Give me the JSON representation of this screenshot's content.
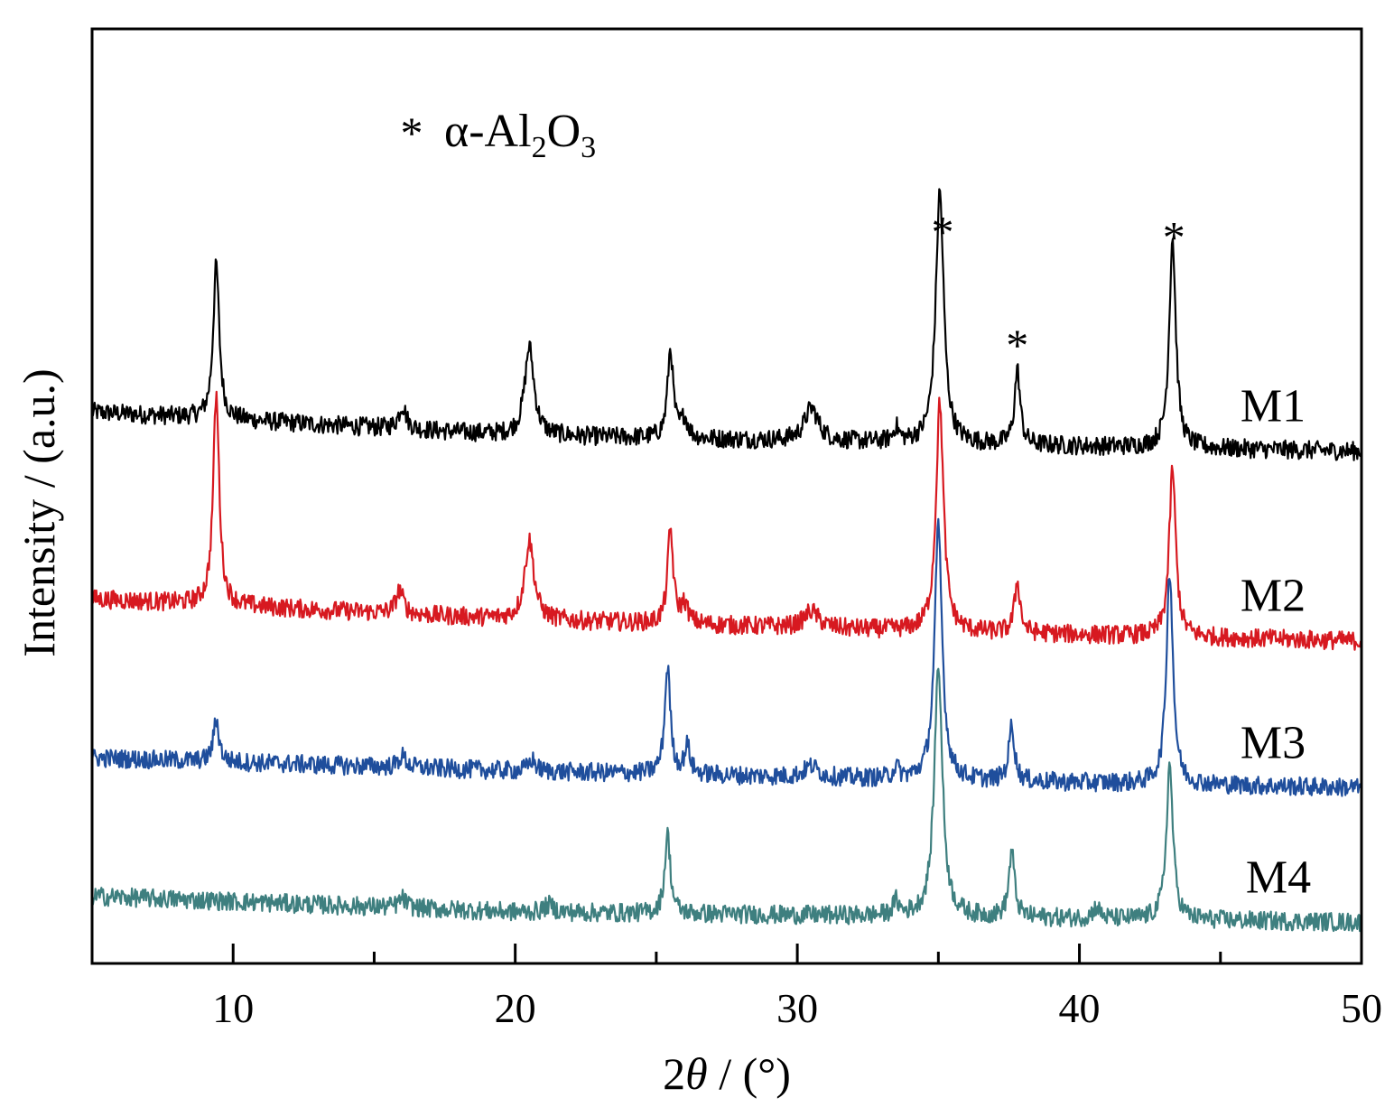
{
  "chart_data": {
    "type": "line",
    "xlabel_prefix": "2",
    "xlabel_symbol": "θ",
    "xlabel_suffix": " / (°)",
    "ylabel": "Intensity / (a.u.)",
    "xlim": [
      5,
      50
    ],
    "xticks": [
      "10",
      "20",
      "30",
      "40",
      "50"
    ],
    "xtick_values": [
      10,
      20,
      30,
      40,
      50
    ],
    "minor_xtick_values": [
      15,
      25,
      35,
      45
    ],
    "legend": {
      "star": "*",
      "alpha": "α-Al",
      "sub1": "2",
      "o": "O",
      "sub2": "3"
    },
    "peak_marker": "*",
    "marked_peaks": [
      {
        "x": 35.15,
        "series": "M1"
      },
      {
        "x": 37.8,
        "series": "M1"
      },
      {
        "x": 43.35,
        "series": "M1"
      }
    ],
    "series": [
      {
        "name": "M1",
        "color": "#000000",
        "baseline": [
          [
            5,
            0.59
          ],
          [
            20,
            0.565
          ],
          [
            35,
            0.556
          ],
          [
            50,
            0.548
          ]
        ],
        "peaks": [
          [
            9.4,
            0.165,
            0.13
          ],
          [
            16.0,
            0.025,
            0.16
          ],
          [
            20.5,
            0.095,
            0.2
          ],
          [
            25.5,
            0.095,
            0.12
          ],
          [
            26.0,
            0.02,
            0.15
          ],
          [
            30.5,
            0.035,
            0.3
          ],
          [
            33.5,
            0.015,
            0.12
          ],
          [
            35.05,
            0.27,
            0.17
          ],
          [
            37.8,
            0.08,
            0.12
          ],
          [
            43.3,
            0.225,
            0.14
          ]
        ],
        "noise": 0.01
      },
      {
        "name": "M2",
        "color": "#d71920",
        "baseline": [
          [
            5,
            0.39
          ],
          [
            20,
            0.368
          ],
          [
            35,
            0.355
          ],
          [
            50,
            0.345
          ]
        ],
        "peaks": [
          [
            9.4,
            0.225,
            0.13
          ],
          [
            15.9,
            0.025,
            0.16
          ],
          [
            20.5,
            0.085,
            0.2
          ],
          [
            25.5,
            0.1,
            0.12
          ],
          [
            26.0,
            0.02,
            0.15
          ],
          [
            30.5,
            0.018,
            0.3
          ],
          [
            35.05,
            0.245,
            0.16
          ],
          [
            37.8,
            0.055,
            0.12
          ],
          [
            43.3,
            0.18,
            0.14
          ]
        ],
        "noise": 0.01
      },
      {
        "name": "M3",
        "color": "#1f4e9c",
        "baseline": [
          [
            5,
            0.22
          ],
          [
            20,
            0.206
          ],
          [
            35,
            0.196
          ],
          [
            50,
            0.188
          ]
        ],
        "peaks": [
          [
            9.4,
            0.045,
            0.12
          ],
          [
            16.0,
            0.012,
            0.16
          ],
          [
            20.6,
            0.012,
            0.15
          ],
          [
            25.4,
            0.115,
            0.12
          ],
          [
            26.1,
            0.03,
            0.12
          ],
          [
            30.5,
            0.012,
            0.3
          ],
          [
            33.5,
            0.012,
            0.12
          ],
          [
            35.0,
            0.27,
            0.16
          ],
          [
            37.6,
            0.06,
            0.12
          ],
          [
            43.2,
            0.23,
            0.14
          ]
        ],
        "noise": 0.01
      },
      {
        "name": "M4",
        "color": "#3e7f7f",
        "baseline": [
          [
            5,
            0.072
          ],
          [
            20,
            0.055
          ],
          [
            35,
            0.05
          ],
          [
            50,
            0.044
          ]
        ],
        "peaks": [
          [
            16.0,
            0.01,
            0.16
          ],
          [
            21.2,
            0.008,
            0.2
          ],
          [
            25.4,
            0.085,
            0.12
          ],
          [
            33.5,
            0.015,
            0.12
          ],
          [
            35.0,
            0.27,
            0.17
          ],
          [
            37.6,
            0.07,
            0.12
          ],
          [
            40.6,
            0.012,
            0.15
          ],
          [
            43.2,
            0.165,
            0.14
          ]
        ],
        "noise": 0.01
      }
    ],
    "ylim": [
      0,
      1
    ],
    "grid": false,
    "yticks_shown": false
  }
}
